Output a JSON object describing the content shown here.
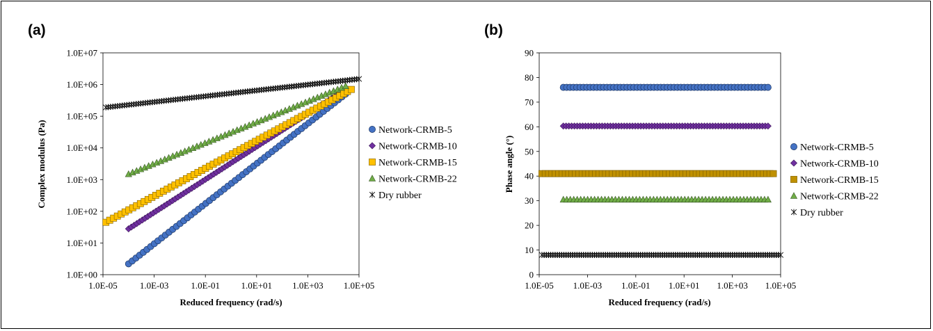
{
  "chart_data": [
    {
      "panel": "(a)",
      "type": "scatter",
      "xscale": "log",
      "yscale": "log",
      "xlim": [
        1e-05,
        100000.0
      ],
      "ylim": [
        1,
        10000000.0
      ],
      "xticks": [
        "1.0E-05",
        "1.0E-03",
        "1.0E-01",
        "1.0E+01",
        "1.0E+03",
        "1.0E+05"
      ],
      "yticks": [
        "1.0E+00",
        "1.0E+01",
        "1.0E+02",
        "1.0E+03",
        "1.0E+04",
        "1.0E+05",
        "1.0E+06",
        "1.0E+07"
      ],
      "xlabel": "Reduced frequency (rad/s)",
      "ylabel": "Complex modulus (Pa)",
      "legend": "right",
      "series": [
        {
          "name": "Network-CRMB-5",
          "marker": "circle",
          "color": "#4472C4",
          "x_range": [
            0.0001,
            30000
          ],
          "y_range": [
            2.2,
            500000
          ],
          "n": 60
        },
        {
          "name": "Network-CRMB-10",
          "marker": "diamond",
          "color": "#7030A0",
          "x_range": [
            0.0001,
            30000
          ],
          "y_range": [
            28,
            700000
          ],
          "n": 80
        },
        {
          "name": "Network-CRMB-15",
          "marker": "square",
          "color": "#FFC000",
          "x_range": [
            1.3e-05,
            50000
          ],
          "y_range": [
            45,
            700000
          ],
          "n": 65
        },
        {
          "name": "Network-CRMB-22",
          "marker": "triangle",
          "color": "#70AD47",
          "x_range": [
            0.0001,
            30000
          ],
          "y_range": [
            1500,
            900000
          ],
          "n": 55
        },
        {
          "name": "Dry rubber",
          "marker": "asterisk",
          "color": "#000000",
          "x_range": [
            1.3e-05,
            100000
          ],
          "y_range": [
            190000,
            1500000
          ],
          "n": 110
        }
      ]
    },
    {
      "panel": "(b)",
      "type": "scatter",
      "xscale": "log",
      "yscale": "linear",
      "xlim": [
        1e-05,
        100000.0
      ],
      "ylim": [
        0,
        90
      ],
      "xticks": [
        "1.0E-05",
        "1.0E-03",
        "1.0E-01",
        "1.0E+01",
        "1.0E+03",
        "1.0E+05"
      ],
      "yticks": [
        "0",
        "10",
        "20",
        "30",
        "40",
        "50",
        "60",
        "70",
        "80",
        "90"
      ],
      "xlabel": "Reduced frequency (rad/s)",
      "ylabel": "Phase angle (°)",
      "legend": "right",
      "series": [
        {
          "name": "Network-CRMB-5",
          "marker": "circle",
          "color": "#4472C4",
          "x_range": [
            0.0001,
            30000
          ],
          "y": 76,
          "n": 62
        },
        {
          "name": "Network-CRMB-10",
          "marker": "diamond",
          "color": "#7030A0",
          "x_range": [
            0.0001,
            30000
          ],
          "y": 60.3,
          "n": 75
        },
        {
          "name": "Network-CRMB-15",
          "marker": "square",
          "color": "#BF9000",
          "x_range": [
            1.3e-05,
            50000
          ],
          "y": 41,
          "n": 70
        },
        {
          "name": "Network-CRMB-22",
          "marker": "triangle",
          "color": "#70AD47",
          "x_range": [
            0.0001,
            30000
          ],
          "y": 30.5,
          "n": 60
        },
        {
          "name": "Dry rubber",
          "marker": "asterisk",
          "color": "#000000",
          "x_range": [
            1.3e-05,
            100000
          ],
          "y": 8,
          "n": 110
        }
      ]
    }
  ]
}
